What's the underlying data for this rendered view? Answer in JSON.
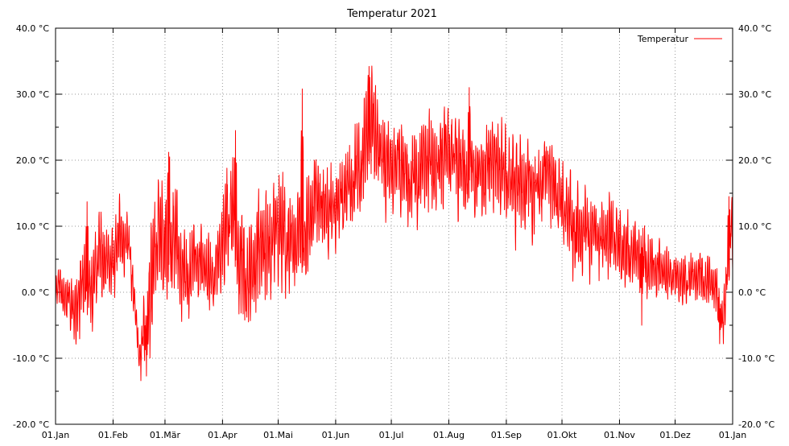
{
  "chart_data": {
    "type": "line",
    "title": "Temperatur 2021",
    "x_tick_labels": [
      "01.Jan",
      "01.Feb",
      "01.Mär",
      "01.Apr",
      "01.Mai",
      "01.Jun",
      "01.Jul",
      "01.Aug",
      "01.Sep",
      "01.Okt",
      "01.Nov",
      "01.Dez",
      "01.Jan"
    ],
    "x_tick_days": [
      0,
      31,
      59,
      90,
      120,
      151,
      181,
      212,
      243,
      273,
      304,
      334,
      365
    ],
    "xlim": [
      "2021-01-01",
      "2022-01-01"
    ],
    "ylim": [
      -20,
      40
    ],
    "y_ticks": [
      -20,
      -10,
      0,
      10,
      20,
      30,
      40
    ],
    "y_tick_labels": [
      "-20.0 °C",
      "-10.0 °C",
      "0.0 °C",
      "10.0 °C",
      "20.0 °C",
      "30.0 °C",
      "40.0 °C"
    ],
    "grid": true,
    "legend_position": "top-right",
    "series": [
      {
        "name": "Temperatur",
        "color": "#ff0000",
        "x": [
          "2021-01-01",
          "2021-01-06",
          "2021-01-11",
          "2021-01-16",
          "2021-01-21",
          "2021-01-26",
          "2021-01-31",
          "2021-02-05",
          "2021-02-10",
          "2021-02-15",
          "2021-02-20",
          "2021-02-25",
          "2021-03-02",
          "2021-03-07",
          "2021-03-12",
          "2021-03-17",
          "2021-03-22",
          "2021-03-27",
          "2021-04-01",
          "2021-04-06",
          "2021-04-11",
          "2021-04-16",
          "2021-04-21",
          "2021-04-26",
          "2021-05-01",
          "2021-05-06",
          "2021-05-11",
          "2021-05-16",
          "2021-05-21",
          "2021-05-26",
          "2021-05-31",
          "2021-06-05",
          "2021-06-10",
          "2021-06-15",
          "2021-06-20",
          "2021-06-25",
          "2021-06-30",
          "2021-07-05",
          "2021-07-10",
          "2021-07-15",
          "2021-07-20",
          "2021-07-25",
          "2021-07-30",
          "2021-08-04",
          "2021-08-09",
          "2021-08-14",
          "2021-08-19",
          "2021-08-24",
          "2021-08-29",
          "2021-09-03",
          "2021-09-08",
          "2021-09-13",
          "2021-09-18",
          "2021-09-23",
          "2021-09-28",
          "2021-10-03",
          "2021-10-08",
          "2021-10-13",
          "2021-10-18",
          "2021-10-23",
          "2021-10-28",
          "2021-11-02",
          "2021-11-07",
          "2021-11-12",
          "2021-11-17",
          "2021-11-22",
          "2021-11-27",
          "2021-12-02",
          "2021-12-07",
          "2021-12-12",
          "2021-12-17",
          "2021-12-22",
          "2021-12-27",
          "2021-12-31"
        ],
        "mean": [
          1,
          0,
          -3,
          2,
          1,
          6,
          3,
          9,
          7,
          -10,
          -4,
          8,
          6,
          8,
          2,
          5,
          3,
          1,
          7,
          12,
          4,
          2,
          6,
          5,
          10,
          6,
          9,
          8,
          14,
          11,
          12,
          14,
          17,
          20,
          25,
          20,
          18,
          19,
          17,
          18,
          20,
          17,
          21,
          20,
          18,
          19,
          17,
          19,
          18,
          16,
          16,
          17,
          15,
          18,
          14,
          12,
          9,
          10,
          9,
          7,
          8,
          6,
          5,
          7,
          4,
          3,
          2,
          2,
          1,
          3,
          2,
          1,
          -5,
          8
        ],
        "amp": [
          2,
          3,
          4,
          5,
          5,
          5,
          4,
          5,
          3,
          3,
          7,
          8,
          8,
          7,
          5,
          5,
          5,
          4,
          6,
          7,
          7,
          6,
          7,
          7,
          7,
          7,
          6,
          6,
          5,
          6,
          5,
          5,
          6,
          6,
          7,
          6,
          6,
          6,
          6,
          6,
          6,
          6,
          6,
          6,
          6,
          5,
          6,
          6,
          6,
          6,
          6,
          6,
          6,
          5,
          5,
          5,
          6,
          5,
          5,
          5,
          5,
          5,
          4,
          4,
          4,
          4,
          3,
          3,
          3,
          3,
          3,
          3,
          3,
          5
        ],
        "extremes": [
          {
            "x": "2021-01-18",
            "y": 13.7
          },
          {
            "x": "2021-02-19",
            "y": -12.7
          },
          {
            "x": "2021-03-03",
            "y": 21.2
          },
          {
            "x": "2021-04-08",
            "y": 24.5
          },
          {
            "x": "2021-05-14",
            "y": 30.8
          },
          {
            "x": "2021-06-19",
            "y": 34.2
          },
          {
            "x": "2021-08-12",
            "y": 31.0
          },
          {
            "x": "2021-10-08",
            "y": 3.7
          },
          {
            "x": "2021-11-13",
            "y": -5.0
          },
          {
            "x": "2021-12-25",
            "y": -7.8
          },
          {
            "x": "2021-12-30",
            "y": 14.5
          }
        ]
      }
    ]
  }
}
